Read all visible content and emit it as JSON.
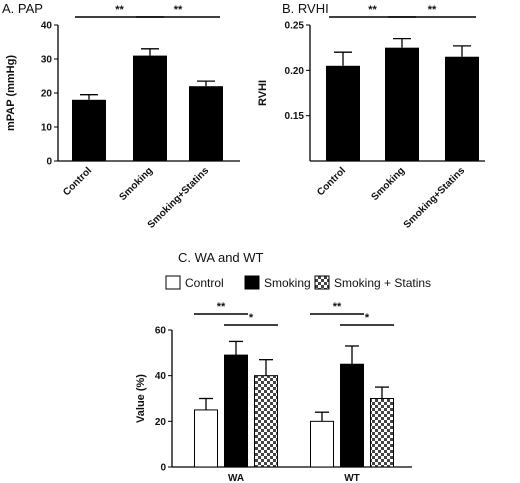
{
  "chart_data": [
    {
      "type": "bar",
      "title": "A. PAP",
      "ylabel": "mPAP (mmHg)",
      "categories": [
        "Control",
        "Smoking",
        "Smoking+Statins"
      ],
      "values": [
        18,
        31,
        22
      ],
      "errors": [
        1.5,
        2,
        1.5
      ],
      "ylim": [
        0,
        40
      ],
      "yticks": [
        "0",
        "10",
        "20",
        "30",
        "40"
      ],
      "significance": [
        {
          "from": 0,
          "to": 1,
          "label": "**"
        },
        {
          "from": 1,
          "to": 2,
          "label": "**"
        }
      ],
      "colors": {
        "bar": "#000000"
      }
    },
    {
      "type": "bar",
      "title": "B. RVHI",
      "ylabel": "RVHI",
      "categories": [
        "Control",
        "Smoking",
        "Smoking+Statins"
      ],
      "values": [
        0.205,
        0.225,
        0.215
      ],
      "errors": [
        0.015,
        0.01,
        0.012
      ],
      "ylim": [
        0.1,
        0.25
      ],
      "yticks": [
        "0.15",
        "0.20",
        "0.25"
      ],
      "significance": [
        {
          "from": 0,
          "to": 1,
          "label": "**"
        },
        {
          "from": 1,
          "to": 2,
          "label": "**"
        }
      ],
      "colors": {
        "bar": "#000000"
      }
    },
    {
      "type": "bar",
      "title": "C. WA and WT",
      "ylabel": "Value (%)",
      "categories": [
        "WA",
        "WT"
      ],
      "series": [
        {
          "name": "Control",
          "values": [
            25,
            20
          ],
          "errors": [
            5,
            4
          ],
          "fill": "white"
        },
        {
          "name": "Smoking",
          "values": [
            49,
            45
          ],
          "errors": [
            6,
            8
          ],
          "fill": "black"
        },
        {
          "name": "Smoking + Statins",
          "values": [
            40,
            30
          ],
          "errors": [
            7,
            5
          ],
          "fill": "checker"
        }
      ],
      "ylim": [
        0,
        60
      ],
      "yticks": [
        "0",
        "20",
        "40",
        "60"
      ],
      "significance": [
        {
          "group": 0,
          "from": 0,
          "to": 1,
          "label": "**"
        },
        {
          "group": 0,
          "from": 1,
          "to": 2,
          "label": "*"
        },
        {
          "group": 1,
          "from": 0,
          "to": 1,
          "label": "**"
        },
        {
          "group": 1,
          "from": 1,
          "to": 2,
          "label": "*"
        }
      ]
    }
  ]
}
